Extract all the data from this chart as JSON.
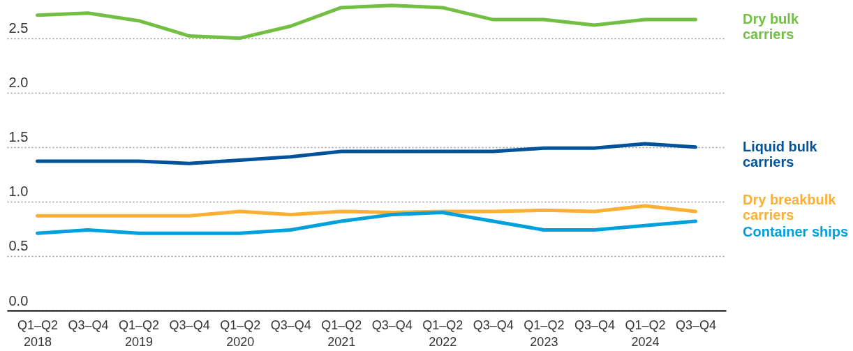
{
  "chart_data": {
    "type": "line",
    "categories": [
      "Q1–Q2 2018",
      "Q3–Q4",
      "Q1–Q2 2019",
      "Q3–Q4",
      "Q1–Q2 2020",
      "Q3–Q4",
      "Q1–Q2 2021",
      "Q3–Q4",
      "Q1–Q2 2022",
      "Q3–Q4",
      "Q1–Q2 2023",
      "Q3–Q4",
      "Q1–Q2 2024",
      "Q3–Q4"
    ],
    "series": [
      {
        "name": "Dry bulk carriers",
        "color": "#72bf44",
        "values": [
          2.71,
          2.73,
          2.66,
          2.52,
          2.5,
          2.61,
          2.78,
          2.8,
          2.78,
          2.67,
          2.67,
          2.62,
          2.67,
          2.67
        ]
      },
      {
        "name": "Liquid bulk carriers",
        "color": "#00539b",
        "values": [
          1.37,
          1.37,
          1.37,
          1.35,
          1.38,
          1.41,
          1.46,
          1.46,
          1.46,
          1.46,
          1.49,
          1.49,
          1.53,
          1.5
        ]
      },
      {
        "name": "Dry breakbulk carriers",
        "color": "#fbb034",
        "values": [
          0.87,
          0.87,
          0.87,
          0.87,
          0.91,
          0.88,
          0.91,
          0.9,
          0.91,
          0.91,
          0.92,
          0.91,
          0.96,
          0.91
        ]
      },
      {
        "name": "Container ships",
        "color": "#00a0dc",
        "values": [
          0.71,
          0.74,
          0.71,
          0.71,
          0.71,
          0.74,
          0.82,
          0.88,
          0.9,
          0.82,
          0.74,
          0.74,
          0.78,
          0.82
        ]
      }
    ],
    "ylim": [
      0,
      2.85
    ],
    "yticks": [
      {
        "value": 0,
        "label": "0.0"
      },
      0.5,
      {
        "value": 1,
        "label": "1.0"
      },
      1.5,
      {
        "value": 2,
        "label": "2.0"
      },
      2.5
    ],
    "grid": "y"
  }
}
